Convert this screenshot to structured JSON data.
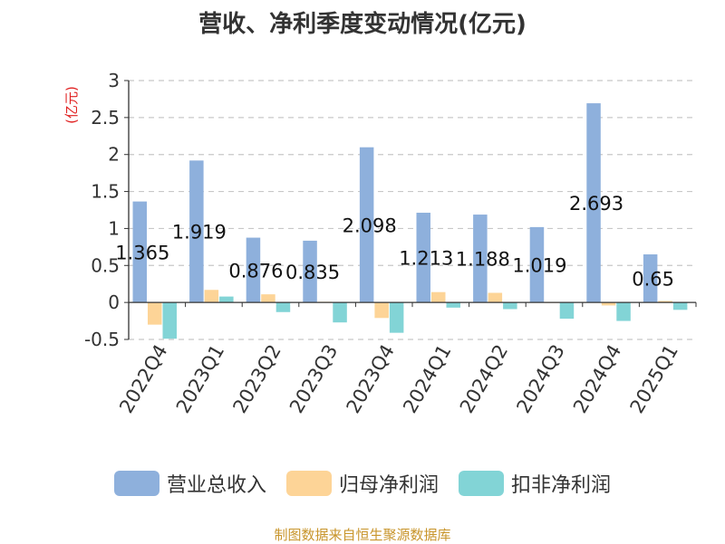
{
  "title": "营收、净利季度变动情况(亿元)",
  "unit_label": "(亿元)",
  "source": "制图数据来自恒生聚源数据库",
  "colors": {
    "revenue": "#8eb0dc",
    "net_profit": "#fdd497",
    "non_gaap_profit": "#82d4d6",
    "unit_label": "#e02020",
    "source": "#c8952b"
  },
  "chart_data": {
    "type": "bar",
    "title": "营收、净利季度变动情况(亿元)",
    "ylabel": "(亿元)",
    "ylim": [
      -0.5,
      3
    ],
    "yticks": [
      3,
      2.5,
      2,
      1.5,
      1,
      0.5,
      0,
      -0.5
    ],
    "grid": true,
    "legend_position": "bottom",
    "categories": [
      "2022Q4",
      "2023Q1",
      "2023Q2",
      "2023Q3",
      "2023Q4",
      "2024Q1",
      "2024Q2",
      "2024Q3",
      "2024Q4",
      "2025Q1"
    ],
    "series": [
      {
        "name": "营业总收入",
        "color": "#8eb0dc",
        "values": [
          1.365,
          1.919,
          0.876,
          0.835,
          2.098,
          1.213,
          1.188,
          1.019,
          2.693,
          0.65
        ],
        "labels": [
          "1.365",
          "1.919",
          "0.876",
          "0.835",
          "2.098",
          "1.213",
          "1.188",
          "1.019",
          "2.693",
          "0.65"
        ]
      },
      {
        "name": "归母净利润",
        "color": "#fdd497",
        "values": [
          -0.3,
          0.17,
          0.11,
          0.01,
          -0.21,
          0.14,
          0.13,
          0.0,
          -0.04,
          0.02
        ]
      },
      {
        "name": "扣非净利润",
        "color": "#82d4d6",
        "values": [
          -0.49,
          0.08,
          -0.13,
          -0.27,
          -0.41,
          -0.07,
          -0.09,
          -0.22,
          -0.25,
          -0.1
        ]
      }
    ]
  }
}
